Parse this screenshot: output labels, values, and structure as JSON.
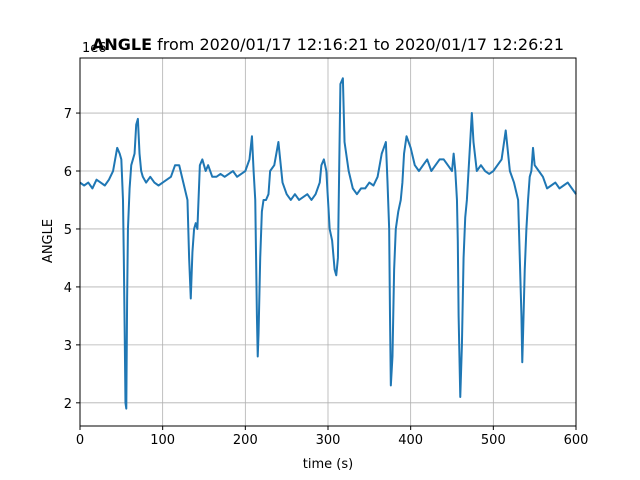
{
  "chart_data": {
    "type": "line",
    "title_bold": "ANGLE",
    "title_rest": " from 2020/01/17 12:16:21 to 2020/01/17 12:26:21",
    "xlabel": "time (s)",
    "ylabel": "ANGLE",
    "y_offset_label": "1e6",
    "xlim": [
      0,
      600
    ],
    "ylim": [
      1.6,
      7.95
    ],
    "xticks": [
      0,
      100,
      200,
      300,
      400,
      500,
      600
    ],
    "yticks": [
      2,
      3,
      4,
      5,
      6,
      7
    ],
    "grid": true,
    "line_color": "#1f77b4",
    "series": [
      {
        "x": [
          0,
          5,
          10,
          15,
          20,
          25,
          30,
          35,
          40,
          45,
          48,
          50,
          52,
          53,
          54,
          55,
          56,
          57,
          58,
          60,
          62,
          64,
          66,
          68,
          70,
          72,
          74,
          76,
          80,
          85,
          90,
          95,
          100,
          105,
          110,
          115,
          120,
          125,
          130,
          132,
          134,
          136,
          138,
          140,
          142,
          145,
          148,
          150,
          152,
          155,
          160,
          165,
          170,
          175,
          180,
          185,
          190,
          195,
          200,
          205,
          208,
          210,
          212,
          214,
          215,
          216,
          218,
          220,
          222,
          225,
          228,
          230,
          235,
          240,
          245,
          250,
          255,
          260,
          265,
          270,
          275,
          280,
          285,
          290,
          292,
          295,
          298,
          300,
          302,
          305,
          308,
          310,
          312,
          313,
          315,
          318,
          320,
          325,
          330,
          335,
          340,
          345,
          350,
          355,
          360,
          365,
          370,
          372,
          374,
          375,
          376,
          378,
          380,
          382,
          385,
          388,
          390,
          392,
          395,
          400,
          405,
          410,
          415,
          420,
          425,
          430,
          435,
          440,
          445,
          450,
          452,
          454,
          456,
          457,
          458,
          460,
          462,
          464,
          466,
          468,
          470,
          472,
          474,
          476,
          480,
          485,
          490,
          495,
          500,
          505,
          510,
          515,
          520,
          525,
          530,
          532,
          534,
          535,
          536,
          538,
          540,
          542,
          544,
          546,
          548,
          550,
          555,
          560,
          565,
          570,
          575,
          580,
          585,
          590,
          595,
          600
        ],
        "values": [
          5.8,
          5.75,
          5.8,
          5.7,
          5.85,
          5.8,
          5.75,
          5.85,
          6.0,
          6.4,
          6.3,
          6.2,
          5.5,
          4.5,
          3.3,
          2.0,
          1.9,
          3.8,
          5.0,
          5.7,
          6.1,
          6.2,
          6.3,
          6.8,
          6.9,
          6.3,
          6.0,
          5.9,
          5.8,
          5.9,
          5.8,
          5.75,
          5.8,
          5.85,
          5.9,
          6.1,
          6.1,
          5.8,
          5.5,
          4.5,
          3.8,
          4.6,
          5.0,
          5.1,
          5.0,
          6.1,
          6.2,
          6.1,
          6.0,
          6.1,
          5.9,
          5.9,
          5.95,
          5.9,
          5.95,
          6.0,
          5.9,
          5.95,
          6.0,
          6.2,
          6.6,
          6.0,
          5.5,
          3.5,
          2.8,
          3.2,
          4.5,
          5.3,
          5.5,
          5.5,
          5.6,
          6.0,
          6.1,
          6.5,
          5.8,
          5.6,
          5.5,
          5.6,
          5.5,
          5.55,
          5.6,
          5.5,
          5.6,
          5.8,
          6.1,
          6.2,
          6.0,
          5.5,
          5.0,
          4.8,
          4.3,
          4.2,
          4.5,
          5.5,
          7.5,
          7.6,
          6.5,
          6.0,
          5.7,
          5.6,
          5.7,
          5.7,
          5.8,
          5.75,
          5.9,
          6.3,
          6.5,
          5.8,
          5.0,
          3.5,
          2.3,
          2.8,
          4.3,
          5.0,
          5.3,
          5.5,
          5.8,
          6.3,
          6.6,
          6.4,
          6.1,
          6.0,
          6.1,
          6.2,
          6.0,
          6.1,
          6.2,
          6.2,
          6.1,
          6.0,
          6.3,
          6.0,
          5.5,
          4.8,
          3.5,
          2.1,
          3.0,
          4.5,
          5.2,
          5.5,
          6.0,
          6.5,
          7.0,
          6.5,
          6.0,
          6.1,
          6.0,
          5.95,
          6.0,
          6.1,
          6.2,
          6.7,
          6.0,
          5.8,
          5.5,
          4.5,
          3.5,
          2.7,
          3.2,
          4.3,
          5.0,
          5.5,
          5.9,
          6.0,
          6.4,
          6.1,
          6.0,
          5.9,
          5.7,
          5.75,
          5.8,
          5.7,
          5.75,
          5.8,
          5.7,
          5.6
        ]
      }
    ]
  }
}
